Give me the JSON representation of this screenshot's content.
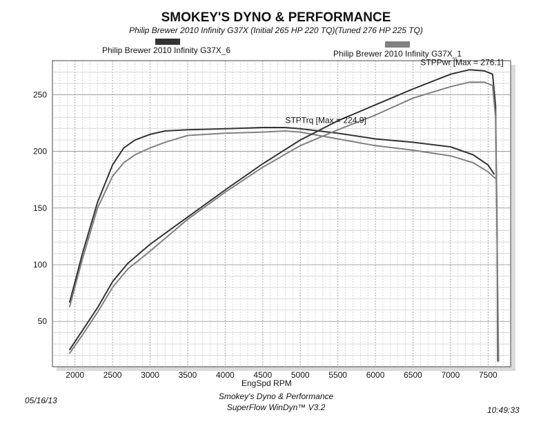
{
  "header": {
    "title": "SMOKEY'S DYNO & PERFORMANCE",
    "subtitle": "Philip Brewer 2010 Infinity G37X (Initial 265 HP 220 TQ)(Tuned 276 HP 225 TQ)"
  },
  "legend": [
    {
      "label": "Philip Brewer 2010 Infinity G37X_6",
      "color": "#333333"
    },
    {
      "label": "Philip Brewer 2010 Infinity G37X_1",
      "color": "#808080"
    }
  ],
  "footer": {
    "date": "05/16/13",
    "time": "10:49:33",
    "line1": "Smokey's Dyno & Performance",
    "line2": "SuperFlow WinDyn™ V3.2"
  },
  "chart_data": {
    "type": "line",
    "xlabel": "EngSpd RPM",
    "ylabel": "",
    "xlim": [
      1700,
      7800
    ],
    "ylim": [
      10,
      280
    ],
    "x_ticks": [
      2000,
      2500,
      3000,
      3500,
      4000,
      4500,
      5000,
      5500,
      6000,
      6500,
      7000,
      7500
    ],
    "y_ticks": [
      50,
      100,
      150,
      200,
      250
    ],
    "grid": true,
    "annotations": [
      {
        "text": "STPPwr [Max = 276.1]",
        "x": 6600,
        "y": 276
      },
      {
        "text": "STPTrq [Max = 224.9]",
        "x": 4800,
        "y": 225
      }
    ],
    "series": [
      {
        "name": "Philip Brewer 2010 Infinity G37X_6",
        "quantity": "STPTrq",
        "color": "#333333",
        "x": [
          1930,
          2100,
          2300,
          2500,
          2650,
          2800,
          3000,
          3200,
          3500,
          4000,
          4500,
          4800,
          5000,
          5500,
          6000,
          6500,
          7000,
          7300,
          7500,
          7580
        ],
        "y": [
          67,
          110,
          155,
          188,
          203,
          210,
          215,
          218,
          219,
          220,
          221,
          221,
          220,
          216,
          211,
          208,
          204,
          197,
          188,
          180
        ]
      },
      {
        "name": "Philip Brewer 2010 Infinity G37X_1",
        "quantity": "STPTrq",
        "color": "#808080",
        "x": [
          1930,
          2100,
          2300,
          2500,
          2650,
          2800,
          3000,
          3200,
          3500,
          4000,
          4500,
          4800,
          5000,
          5500,
          6000,
          6500,
          7000,
          7300,
          7500,
          7600
        ],
        "y": [
          63,
          105,
          150,
          178,
          190,
          197,
          203,
          208,
          214,
          216,
          217,
          218,
          217,
          211,
          205,
          201,
          196,
          190,
          182,
          176
        ]
      },
      {
        "name": "Philip Brewer 2010 Infinity G37X_6",
        "quantity": "STPPwr",
        "color": "#333333",
        "x": [
          1930,
          2100,
          2300,
          2500,
          2700,
          3000,
          3500,
          4000,
          4500,
          5000,
          5500,
          6000,
          6500,
          7000,
          7250,
          7450,
          7560,
          7600,
          7620,
          7630
        ],
        "y": [
          25,
          42,
          62,
          85,
          101,
          118,
          142,
          166,
          189,
          210,
          227,
          241,
          255,
          268,
          272,
          271,
          268,
          240,
          130,
          15
        ]
      },
      {
        "name": "Philip Brewer 2010 Infinity G37X_1",
        "quantity": "STPPwr",
        "color": "#808080",
        "x": [
          1930,
          2100,
          2300,
          2500,
          2700,
          3000,
          3500,
          4000,
          4500,
          5000,
          5500,
          6000,
          6500,
          7000,
          7250,
          7450,
          7560,
          7600,
          7620,
          7640
        ],
        "y": [
          22,
          38,
          58,
          80,
          96,
          112,
          140,
          164,
          186,
          205,
          219,
          232,
          247,
          257,
          261,
          261,
          258,
          230,
          120,
          15
        ]
      }
    ]
  }
}
